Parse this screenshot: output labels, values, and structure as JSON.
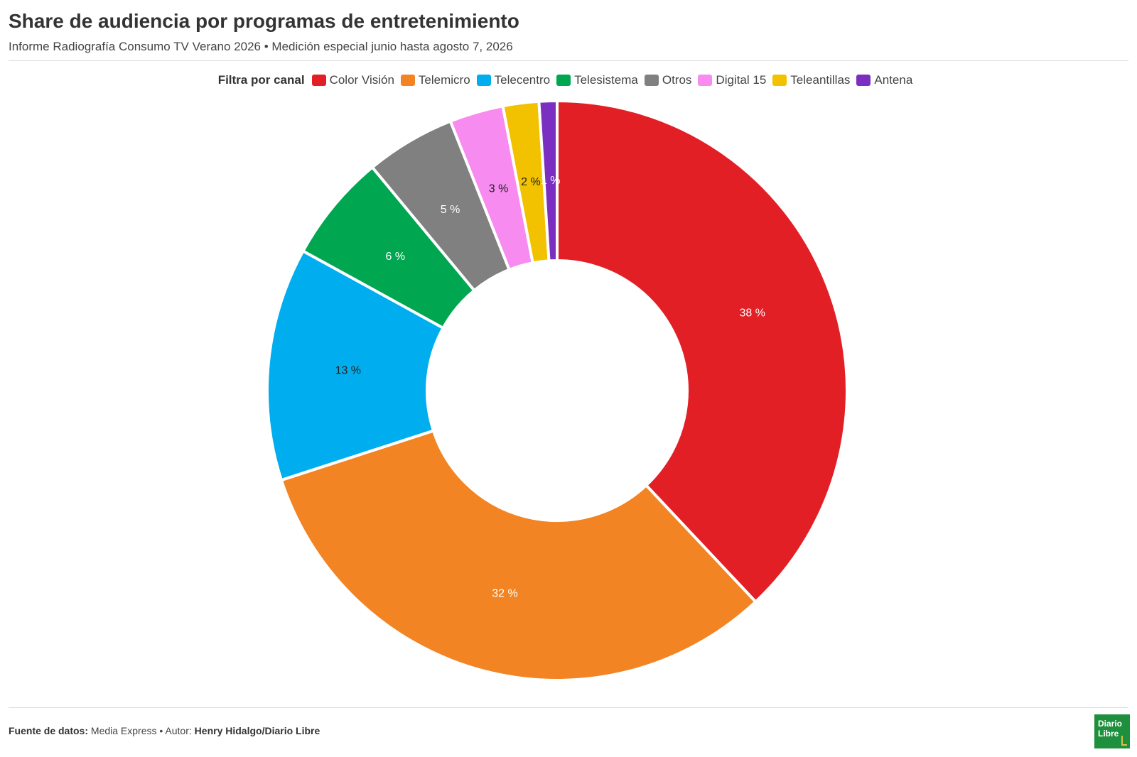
{
  "header": {
    "title": "Share de audiencia por programas de entretenimiento",
    "subtitle": "Informe Radiografía Consumo TV Verano 2026 • Medición especial junio hasta agosto 7, 2026"
  },
  "legend": {
    "title": "Filtra por canal",
    "placement": "top-center"
  },
  "footer": {
    "source_label": "Fuente de datos:",
    "source_value": "Media Express",
    "separator": "•",
    "author_label": "Autor:",
    "author_value": "Henry Hidalgo/Diario Libre"
  },
  "logo": {
    "line1": "Diario",
    "line2": "Libre"
  },
  "chart_data": {
    "type": "pie",
    "variant": "donut",
    "title": "Share de audiencia por programas de entretenimiento",
    "subtitle": "Informe Radiografía Consumo TV Verano 2026 • Medición especial junio hasta agosto 7, 2026",
    "legend_title": "Filtra por canal",
    "legend_placement": "top",
    "value_suffix": " %",
    "slices": [
      {
        "label": "Color Visión",
        "value": 38,
        "display": "38 %",
        "color": "#e31f26",
        "label_color": "#ffffff"
      },
      {
        "label": "Telemicro",
        "value": 32,
        "display": "32 %",
        "color": "#f28423",
        "label_color": "#ffffff"
      },
      {
        "label": "Telecentro",
        "value": 13,
        "display": "13 %",
        "color": "#00aeef",
        "label_color": "#222222"
      },
      {
        "label": "Telesistema",
        "value": 6,
        "display": "6 %",
        "color": "#00a650",
        "label_color": "#ffffff"
      },
      {
        "label": "Otros",
        "value": 5,
        "display": "5 %",
        "color": "#808080",
        "label_color": "#ffffff"
      },
      {
        "label": "Digital 15",
        "value": 3,
        "display": "3 %",
        "color": "#f78bef",
        "label_color": "#222222"
      },
      {
        "label": "Teleantillas",
        "value": 2,
        "display": "2 %",
        "color": "#f2c200",
        "label_color": "#222222"
      },
      {
        "label": "Antena",
        "value": 1,
        "display": "1 %",
        "color": "#7b2fc0",
        "label_color": "#ffffff"
      }
    ]
  }
}
